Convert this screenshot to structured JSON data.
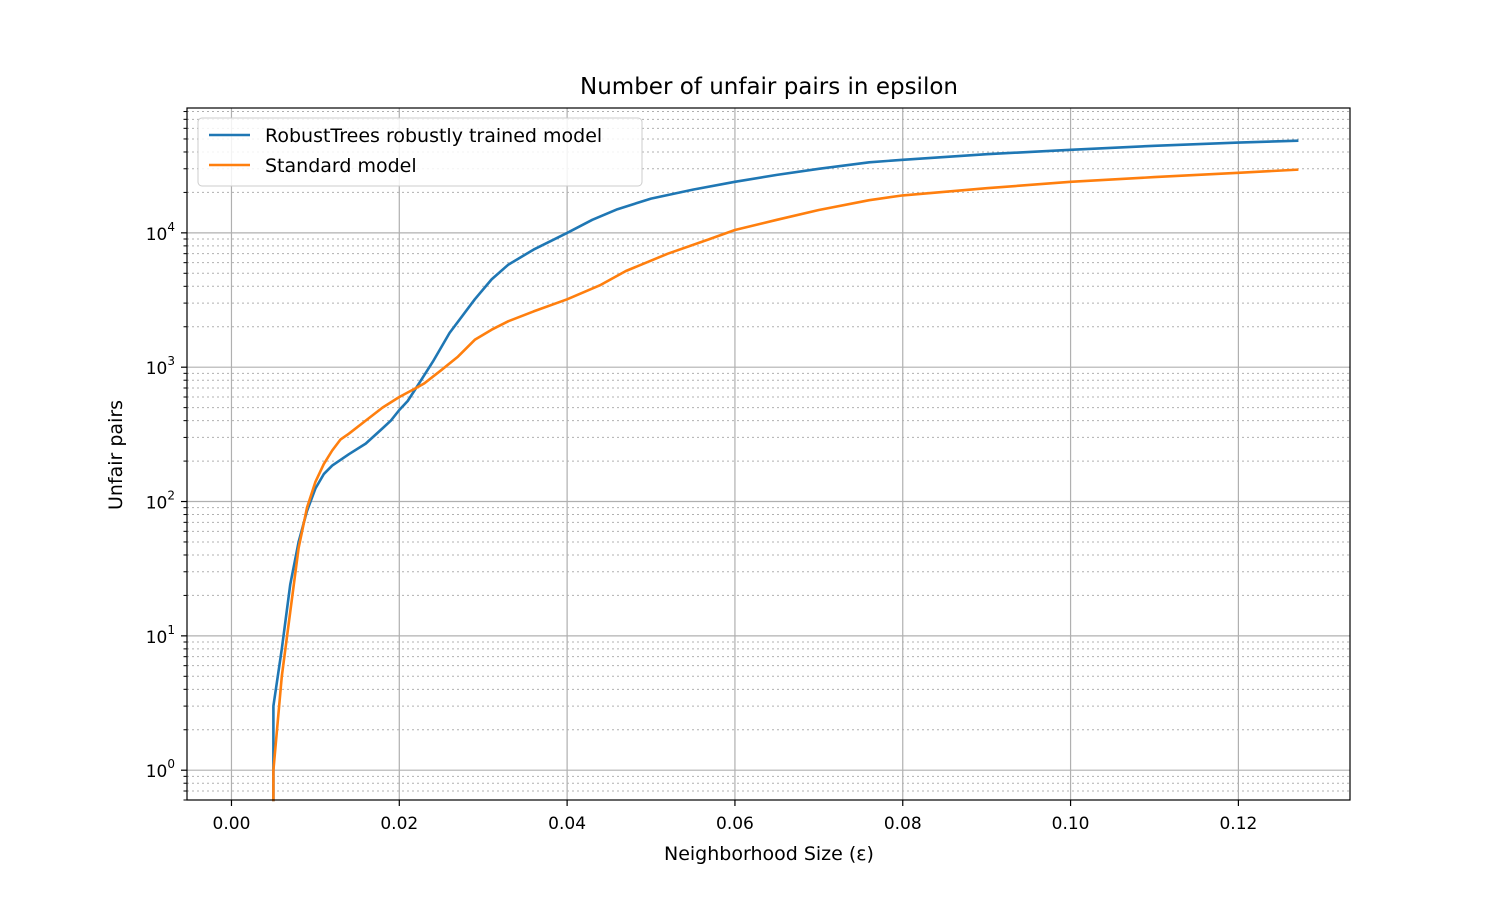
{
  "chart_data": {
    "type": "line",
    "title": "Number of unfair pairs in epsilon",
    "xlabel": "Neighborhood Size (ε)",
    "ylabel": "Unfair pairs",
    "xlim": [
      -0.0053,
      0.1333
    ],
    "ylim": [
      0.6,
      85000
    ],
    "yscale": "log",
    "grid": true,
    "legend_position": "top-left",
    "x_ticks": [
      0.0,
      0.02,
      0.04,
      0.06,
      0.08,
      0.1,
      0.12
    ],
    "x_tick_labels": [
      "0.00",
      "0.02",
      "0.04",
      "0.06",
      "0.08",
      "0.10",
      "0.12"
    ],
    "y_ticks": [
      1,
      10,
      100,
      1000,
      10000
    ],
    "y_tick_labels": [
      {
        "base": "10",
        "exp": "0"
      },
      {
        "base": "10",
        "exp": "1"
      },
      {
        "base": "10",
        "exp": "2"
      },
      {
        "base": "10",
        "exp": "3"
      },
      {
        "base": "10",
        "exp": "4"
      }
    ],
    "series": [
      {
        "name": "RobustTrees robustly trained model",
        "color": "#1f77b4",
        "x": [
          0.005,
          0.005,
          0.005,
          0.006,
          0.007,
          0.008,
          0.009,
          0.01,
          0.011,
          0.012,
          0.014,
          0.016,
          0.018,
          0.019,
          0.02,
          0.021,
          0.022,
          0.024,
          0.026,
          0.029,
          0.031,
          0.033,
          0.036,
          0.04,
          0.043,
          0.046,
          0.05,
          0.055,
          0.06,
          0.065,
          0.07,
          0.076,
          0.08,
          0.09,
          0.1,
          0.11,
          0.12,
          0.127
        ],
        "y": [
          0.6,
          1,
          3,
          8,
          24,
          50,
          85,
          125,
          160,
          185,
          225,
          270,
          350,
          400,
          480,
          560,
          700,
          1100,
          1800,
          3200,
          4500,
          5800,
          7500,
          10000,
          12500,
          15000,
          18000,
          21000,
          24000,
          27000,
          30000,
          33500,
          35000,
          38500,
          41500,
          44500,
          47000,
          48500
        ]
      },
      {
        "name": "Standard model",
        "color": "#ff7f0e",
        "x": [
          0.005,
          0.005,
          0.006,
          0.007,
          0.008,
          0.009,
          0.01,
          0.011,
          0.012,
          0.013,
          0.014,
          0.016,
          0.018,
          0.02,
          0.022,
          0.023,
          0.025,
          0.027,
          0.029,
          0.031,
          0.033,
          0.036,
          0.04,
          0.044,
          0.047,
          0.052,
          0.057,
          0.06,
          0.065,
          0.07,
          0.076,
          0.08,
          0.09,
          0.1,
          0.11,
          0.12,
          0.127
        ],
        "y": [
          0.6,
          1,
          5,
          15,
          45,
          90,
          140,
          190,
          240,
          290,
          320,
          400,
          500,
          600,
          700,
          760,
          950,
          1200,
          1600,
          1900,
          2200,
          2600,
          3200,
          4100,
          5200,
          7000,
          9000,
          10500,
          12500,
          14800,
          17500,
          19000,
          21500,
          24000,
          26000,
          28000,
          29500
        ]
      }
    ]
  }
}
